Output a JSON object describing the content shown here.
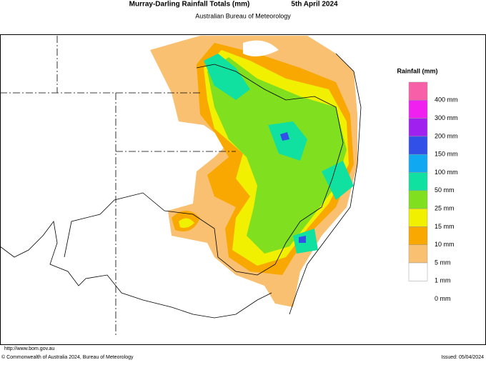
{
  "header": {
    "title": "Murray-Darling Rainfall Totals (mm)",
    "date": "5th April 2024",
    "subtitle": "Australian Bureau of Meteorology"
  },
  "legend": {
    "title": "Rainfall (mm)",
    "colors": [
      "#f75fa8",
      "#f020f0",
      "#a020f0",
      "#3050e8",
      "#10a8f0",
      "#10e0a0",
      "#80e020",
      "#f0f000",
      "#f8a800",
      "#f8c070",
      "#ffffff"
    ],
    "labels": [
      "400 mm",
      "300 mm",
      "200 mm",
      "150 mm",
      "100 mm",
      "50 mm",
      "25 mm",
      "15 mm",
      "10 mm",
      "5 mm",
      "1 mm",
      "0 mm"
    ]
  },
  "footer": {
    "url": "http://www.bom.gov.au",
    "copyright": "© Commonwealth of Australia 2024, Bureau of Meteorology",
    "issued": "Issued: 05/04/2024"
  }
}
